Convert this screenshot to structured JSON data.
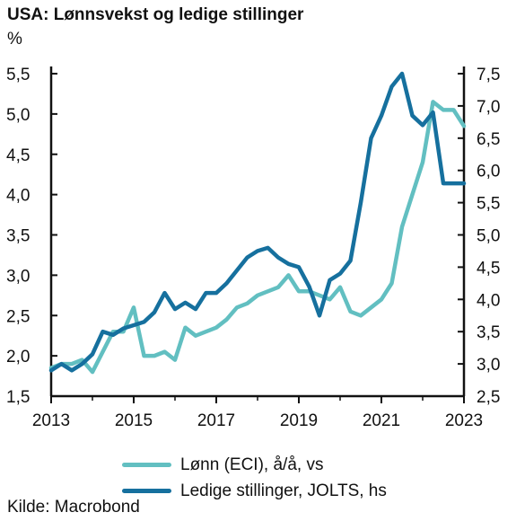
{
  "header": {
    "title": "USA: Lønnsvekst og ledige stillinger",
    "unit": "%"
  },
  "source": "Kilde: Macrobond",
  "colors": {
    "eci": "#62bfc1",
    "jolts": "#16709e",
    "axis": "#111111"
  },
  "chart_data": {
    "type": "line",
    "title": "USA: Lønnsvekst og ledige stillinger",
    "x_ticks": [
      "2013",
      "2015",
      "2017",
      "2019",
      "2021",
      "2023"
    ],
    "x_range": [
      2013,
      2023
    ],
    "y_left": {
      "label": "%",
      "range": [
        1.5,
        5.5
      ],
      "ticks": [
        "1,5",
        "2,0",
        "2,5",
        "3,0",
        "3,5",
        "4,0",
        "4,5",
        "5,0",
        "5,5"
      ]
    },
    "y_right": {
      "range": [
        2.5,
        7.5
      ],
      "ticks": [
        "2,5",
        "3,0",
        "3,5",
        "4,0",
        "4,5",
        "5,0",
        "5,5",
        "6,0",
        "6,5",
        "7,0",
        "7,5"
      ]
    },
    "grid": false,
    "legend_position": "bottom",
    "series": [
      {
        "name": "Lønn (ECI), å/å, vs",
        "axis": "left",
        "color": "#62bfc1",
        "x": [
          2013.0,
          2013.25,
          2013.5,
          2013.75,
          2014.0,
          2014.25,
          2014.5,
          2014.75,
          2015.0,
          2015.25,
          2015.5,
          2015.75,
          2016.0,
          2016.25,
          2016.5,
          2016.75,
          2017.0,
          2017.25,
          2017.5,
          2017.75,
          2018.0,
          2018.25,
          2018.5,
          2018.75,
          2019.0,
          2019.25,
          2019.5,
          2019.75,
          2020.0,
          2020.25,
          2020.5,
          2020.75,
          2021.0,
          2021.25,
          2021.5,
          2021.75,
          2022.0,
          2022.25,
          2022.5,
          2022.75,
          2023.0
        ],
        "values": [
          1.85,
          1.9,
          1.9,
          1.95,
          1.8,
          2.05,
          2.3,
          2.3,
          2.6,
          2.0,
          2.0,
          2.05,
          1.95,
          2.35,
          2.25,
          2.3,
          2.35,
          2.45,
          2.6,
          2.65,
          2.75,
          2.8,
          2.85,
          3.0,
          2.8,
          2.8,
          2.75,
          2.7,
          2.85,
          2.55,
          2.5,
          2.6,
          2.7,
          2.9,
          3.6,
          4.0,
          4.4,
          5.15,
          5.05,
          5.05,
          4.85
        ]
      },
      {
        "name": "Ledige stillinger, JOLTS, hs",
        "axis": "right",
        "color": "#16709e",
        "x": [
          2013.0,
          2013.25,
          2013.5,
          2013.75,
          2014.0,
          2014.25,
          2014.5,
          2014.75,
          2015.0,
          2015.25,
          2015.5,
          2015.75,
          2016.0,
          2016.25,
          2016.5,
          2016.75,
          2017.0,
          2017.25,
          2017.5,
          2017.75,
          2018.0,
          2018.25,
          2018.5,
          2018.75,
          2019.0,
          2019.25,
          2019.5,
          2019.75,
          2020.0,
          2020.25,
          2020.5,
          2020.75,
          2021.0,
          2021.25,
          2021.5,
          2021.75,
          2022.0,
          2022.25,
          2022.5,
          2022.75,
          2023.0
        ],
        "values": [
          2.9,
          3.0,
          2.9,
          3.0,
          3.15,
          3.5,
          3.45,
          3.55,
          3.6,
          3.65,
          3.8,
          4.1,
          3.85,
          3.95,
          3.85,
          4.1,
          4.1,
          4.25,
          4.45,
          4.65,
          4.75,
          4.8,
          4.65,
          4.55,
          4.5,
          4.2,
          3.75,
          4.3,
          4.4,
          4.6,
          5.5,
          6.5,
          6.85,
          7.3,
          7.5,
          6.85,
          6.7,
          6.9,
          5.8,
          5.8,
          5.8
        ]
      }
    ]
  }
}
